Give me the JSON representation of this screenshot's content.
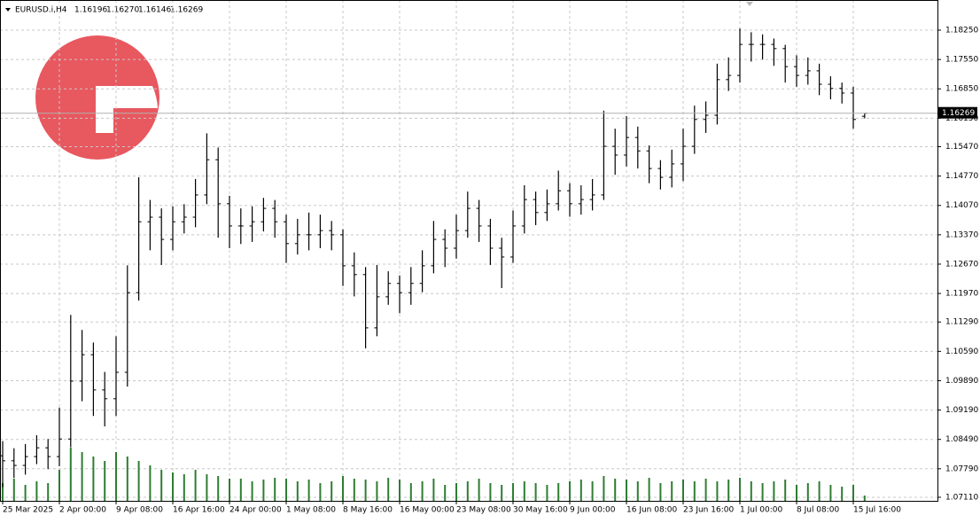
{
  "chart_data": {
    "type": "ohlc",
    "symbol": "EURUSD.i,H4",
    "header_values": [
      "1.16196",
      "1.16270",
      "1.16146",
      "1.16269"
    ],
    "categories": [
      "25 Mar 2025",
      null,
      null,
      null,
      null,
      "2 Apr 00:00",
      null,
      null,
      null,
      null,
      "9 Apr 08:00",
      null,
      null,
      null,
      null,
      "16 Apr 16:00",
      null,
      null,
      null,
      null,
      "24 Apr 00:00",
      null,
      null,
      null,
      null,
      "1 May 08:00",
      null,
      null,
      null,
      null,
      "8 May 16:00",
      null,
      null,
      null,
      null,
      "16 May 00:00",
      null,
      null,
      null,
      null,
      "23 May 08:00",
      null,
      null,
      null,
      null,
      "30 May 16:00",
      null,
      null,
      null,
      null,
      "9 Jun 00:00",
      null,
      null,
      null,
      null,
      "16 Jun 08:00",
      null,
      null,
      null,
      null,
      "23 Jun 16:00",
      null,
      null,
      null,
      null,
      "1 Jul 00:00",
      null,
      null,
      null,
      null,
      "8 Jul 08:00",
      null,
      null,
      null,
      null,
      "15 Jul 16:00",
      null
    ],
    "open": [
      1.081,
      1.0798,
      1.0787,
      1.0808,
      1.0829,
      1.0808,
      1.085,
      1.0988,
      1.1051,
      1.0967,
      1.0946,
      1.1009,
      1.1199,
      1.1368,
      1.1379,
      1.1326,
      1.1368,
      1.1379,
      1.1432,
      1.1516,
      1.1411,
      1.1358,
      1.1358,
      1.1368,
      1.14,
      1.1368,
      1.1316,
      1.1337,
      1.1337,
      1.1347,
      1.1337,
      1.1263,
      1.1242,
      1.1115,
      1.1189,
      1.1221,
      1.1199,
      1.1221,
      1.1263,
      1.1326,
      1.1305,
      1.1347,
      1.14,
      1.1358,
      1.1305,
      1.1284,
      1.1358,
      1.1421,
      1.139,
      1.1411,
      1.1442,
      1.1411,
      1.1421,
      1.1432,
      1.1548,
      1.1527,
      1.1569,
      1.1537,
      1.1495,
      1.1474,
      1.1506,
      1.1548,
      1.1612,
      1.1622,
      1.1707,
      1.1717,
      1.1791,
      1.1791,
      1.1791,
      1.1781,
      1.1738,
      1.1717,
      1.1728,
      1.1696,
      1.1686,
      1.1675,
      1.16196
    ],
    "high": [
      1.0845,
      1.0828,
      1.0838,
      1.0859,
      1.085,
      1.0925,
      1.1146,
      1.111,
      1.108,
      1.101,
      1.1095,
      1.1264,
      1.1474,
      1.142,
      1.14,
      1.1405,
      1.141,
      1.147,
      1.1579,
      1.1545,
      1.143,
      1.14,
      1.1405,
      1.1425,
      1.142,
      1.1385,
      1.1375,
      1.139,
      1.1385,
      1.137,
      1.135,
      1.1295,
      1.126,
      1.1265,
      1.125,
      1.124,
      1.126,
      1.13,
      1.137,
      1.135,
      1.1385,
      1.144,
      1.142,
      1.1375,
      1.133,
      1.1395,
      1.1455,
      1.144,
      1.1445,
      1.149,
      1.146,
      1.1455,
      1.147,
      1.1633,
      1.159,
      1.162,
      1.1595,
      1.155,
      1.1515,
      1.154,
      1.159,
      1.1645,
      1.1655,
      1.1745,
      1.176,
      1.1829,
      1.182,
      1.1815,
      1.1805,
      1.179,
      1.1765,
      1.176,
      1.1745,
      1.1715,
      1.17,
      1.169,
      1.1627
    ],
    "low": [
      1.0735,
      1.0757,
      1.0765,
      1.079,
      1.0778,
      1.0785,
      1.083,
      1.094,
      1.0905,
      1.088,
      1.0905,
      1.0975,
      1.118,
      1.13,
      1.1265,
      1.13,
      1.134,
      1.1355,
      1.141,
      1.133,
      1.1305,
      1.1315,
      1.132,
      1.1345,
      1.133,
      1.127,
      1.129,
      1.13,
      1.1305,
      1.13,
      1.1215,
      1.119,
      1.1066,
      1.1095,
      1.117,
      1.115,
      1.117,
      1.12,
      1.1245,
      1.126,
      1.128,
      1.133,
      1.132,
      1.1265,
      1.121,
      1.127,
      1.134,
      1.136,
      1.137,
      1.1395,
      1.138,
      1.1385,
      1.1395,
      1.142,
      1.148,
      1.15,
      1.1495,
      1.146,
      1.1445,
      1.145,
      1.1465,
      1.153,
      1.158,
      1.16,
      1.168,
      1.17,
      1.175,
      1.1755,
      1.174,
      1.17,
      1.169,
      1.1695,
      1.167,
      1.166,
      1.165,
      1.159,
      1.16146
    ],
    "close": [
      1.0798,
      1.0787,
      1.0808,
      1.0829,
      1.0808,
      1.085,
      1.0988,
      1.1051,
      1.0967,
      1.0946,
      1.1009,
      1.1199,
      1.1368,
      1.1379,
      1.1326,
      1.1368,
      1.1379,
      1.1432,
      1.1516,
      1.1411,
      1.1358,
      1.1358,
      1.1368,
      1.14,
      1.1368,
      1.1316,
      1.1337,
      1.1337,
      1.1347,
      1.1337,
      1.1263,
      1.1242,
      1.1115,
      1.1189,
      1.1221,
      1.1199,
      1.1221,
      1.1263,
      1.1326,
      1.1305,
      1.1347,
      1.14,
      1.1358,
      1.1305,
      1.1284,
      1.1358,
      1.1421,
      1.139,
      1.1411,
      1.1442,
      1.1411,
      1.1421,
      1.1432,
      1.1548,
      1.1527,
      1.1569,
      1.1537,
      1.1495,
      1.1474,
      1.1506,
      1.1548,
      1.1612,
      1.1622,
      1.1707,
      1.1717,
      1.1791,
      1.1791,
      1.1791,
      1.1781,
      1.1738,
      1.1717,
      1.1728,
      1.1696,
      1.1686,
      1.1675,
      1.1612,
      1.16269
    ],
    "volume": [
      20,
      25,
      18,
      22,
      20,
      35,
      60,
      55,
      50,
      45,
      55,
      50,
      45,
      40,
      35,
      32,
      30,
      35,
      30,
      28,
      25,
      25,
      22,
      24,
      26,
      25,
      22,
      24,
      20,
      22,
      28,
      25,
      24,
      22,
      26,
      24,
      20,
      22,
      25,
      18,
      20,
      22,
      25,
      20,
      18,
      20,
      22,
      20,
      18,
      20,
      22,
      24,
      22,
      28,
      25,
      24,
      22,
      26,
      20,
      22,
      24,
      22,
      25,
      22,
      24,
      26,
      22,
      20,
      22,
      24,
      18,
      20,
      22,
      18,
      16,
      18,
      6
    ],
    "color": "#000000",
    "volume_color": "#2e7d32",
    "price_label": {
      "value": 1.16269,
      "label": "1.16269"
    },
    "ylim": [
      1.07025,
      1.18969
    ],
    "yticks": [
      {
        "value": 1.0711,
        "label": "1.07110"
      },
      {
        "value": 1.0779,
        "label": "1.07790"
      },
      {
        "value": 1.0849,
        "label": "1.08490"
      },
      {
        "value": 1.0919,
        "label": "1.09190"
      },
      {
        "value": 1.0989,
        "label": "1.09890"
      },
      {
        "value": 1.1059,
        "label": "1.10590"
      },
      {
        "value": 1.1129,
        "label": "1.11290"
      },
      {
        "value": 1.1197,
        "label": "1.11970"
      },
      {
        "value": 1.1267,
        "label": "1.12670"
      },
      {
        "value": 1.1337,
        "label": "1.13370"
      },
      {
        "value": 1.1407,
        "label": "1.14070"
      },
      {
        "value": 1.1477,
        "label": "1.14770"
      },
      {
        "value": 1.1547,
        "label": "1.15470"
      },
      {
        "value": 1.1615,
        "label": "1.16150"
      },
      {
        "value": 1.1685,
        "label": "1.16850"
      },
      {
        "value": 1.1755,
        "label": "1.17550"
      },
      {
        "value": 1.1825,
        "label": "1.18250"
      }
    ],
    "grid": true
  }
}
